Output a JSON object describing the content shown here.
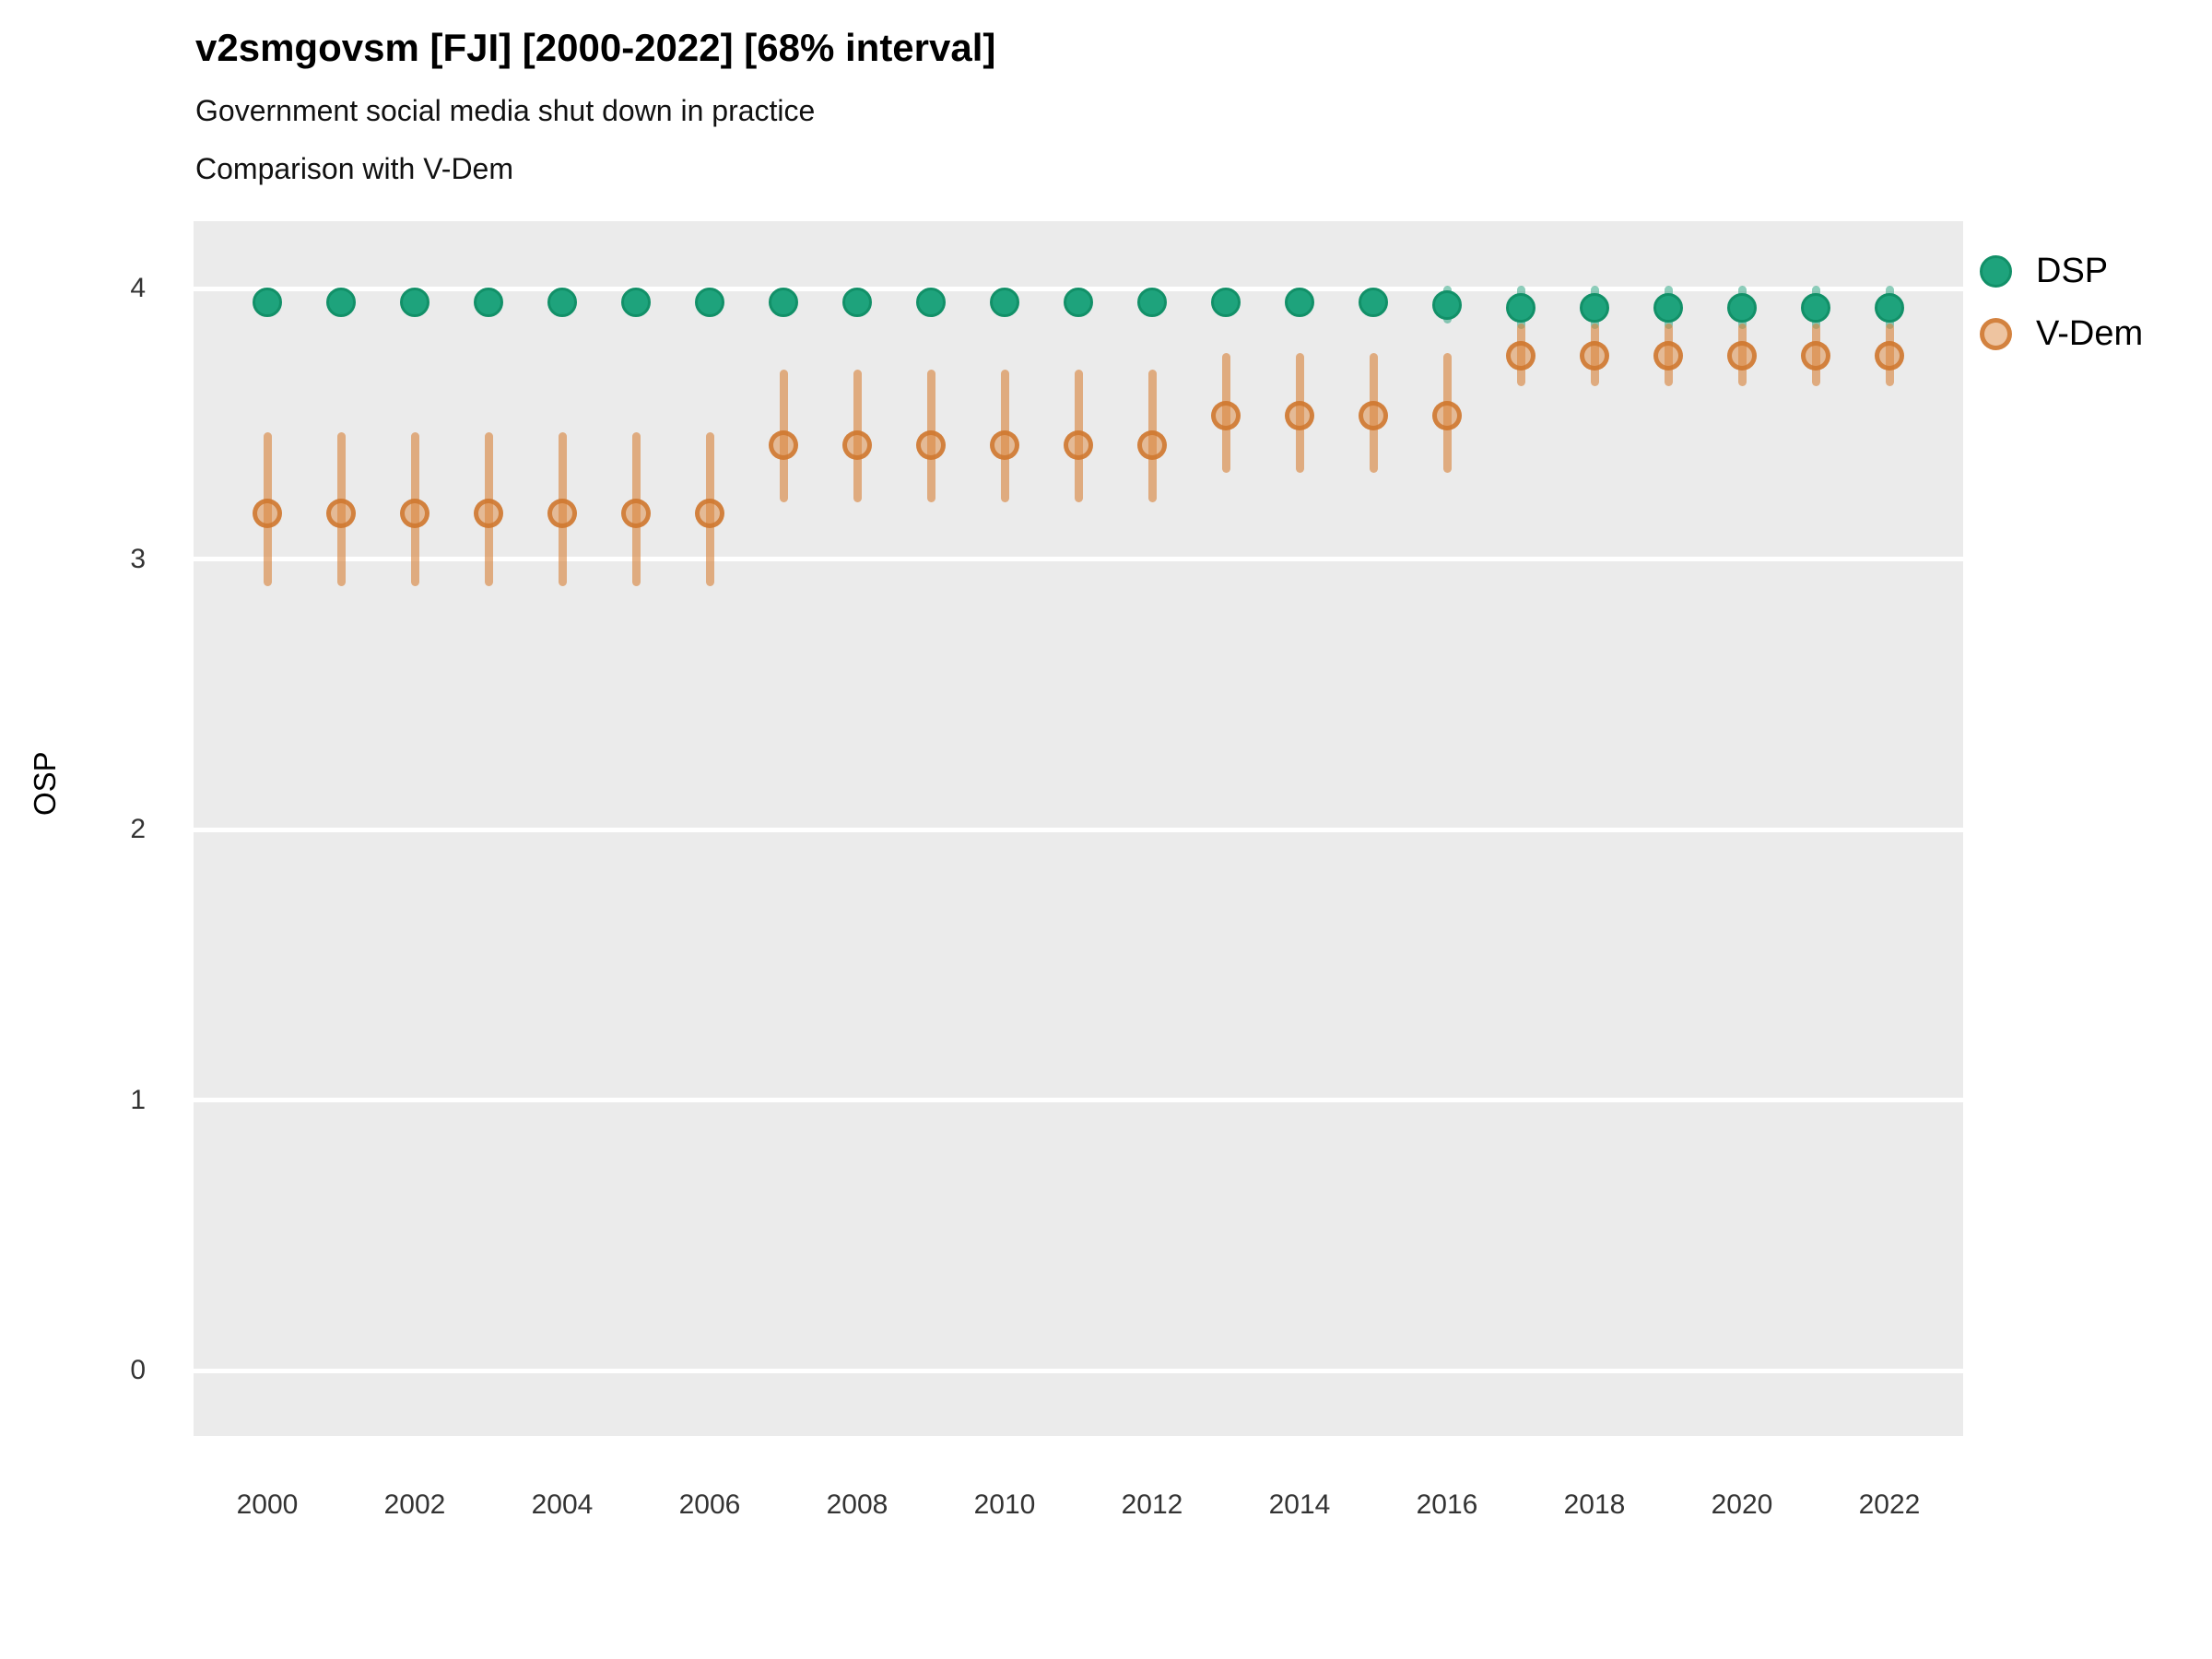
{
  "chart_data": {
    "type": "scatter",
    "title": "v2smgovsm [FJI] [2000-2022] [68% interval]",
    "subtitle": "Government social media shut down in practice",
    "subtitle2": "Comparison with V-Dem",
    "xlabel": "",
    "ylabel": "OSP",
    "xlim": [
      1999,
      2023
    ],
    "ylim": [
      -0.25,
      4.25
    ],
    "y_ticks": [
      4,
      3,
      2,
      1,
      0
    ],
    "x_ticks": [
      2000,
      2002,
      2004,
      2006,
      2008,
      2010,
      2012,
      2014,
      2016,
      2018,
      2020,
      2022
    ],
    "grid": "horizontal-major-only",
    "legend_position": "right",
    "interval_label": "68% interval",
    "series": [
      {
        "name": "DSP",
        "color": "#1ea37c",
        "points": [
          {
            "year": 2000,
            "y": 3.95,
            "lo": 3.91,
            "hi": 3.99
          },
          {
            "year": 2001,
            "y": 3.95,
            "lo": 3.91,
            "hi": 3.99
          },
          {
            "year": 2002,
            "y": 3.95,
            "lo": 3.91,
            "hi": 3.99
          },
          {
            "year": 2003,
            "y": 3.95,
            "lo": 3.91,
            "hi": 3.99
          },
          {
            "year": 2004,
            "y": 3.95,
            "lo": 3.91,
            "hi": 3.99
          },
          {
            "year": 2005,
            "y": 3.95,
            "lo": 3.91,
            "hi": 3.99
          },
          {
            "year": 2006,
            "y": 3.95,
            "lo": 3.91,
            "hi": 3.99
          },
          {
            "year": 2007,
            "y": 3.95,
            "lo": 3.91,
            "hi": 3.99
          },
          {
            "year": 2008,
            "y": 3.95,
            "lo": 3.91,
            "hi": 3.99
          },
          {
            "year": 2009,
            "y": 3.95,
            "lo": 3.91,
            "hi": 3.99
          },
          {
            "year": 2010,
            "y": 3.95,
            "lo": 3.91,
            "hi": 3.99
          },
          {
            "year": 2011,
            "y": 3.95,
            "lo": 3.91,
            "hi": 3.99
          },
          {
            "year": 2012,
            "y": 3.95,
            "lo": 3.91,
            "hi": 3.99
          },
          {
            "year": 2013,
            "y": 3.95,
            "lo": 3.91,
            "hi": 3.99
          },
          {
            "year": 2014,
            "y": 3.95,
            "lo": 3.91,
            "hi": 3.99
          },
          {
            "year": 2015,
            "y": 3.95,
            "lo": 3.91,
            "hi": 3.99
          },
          {
            "year": 2016,
            "y": 3.94,
            "lo": 3.87,
            "hi": 4.01
          },
          {
            "year": 2017,
            "y": 3.93,
            "lo": 3.85,
            "hi": 4.01
          },
          {
            "year": 2018,
            "y": 3.93,
            "lo": 3.85,
            "hi": 4.01
          },
          {
            "year": 2019,
            "y": 3.93,
            "lo": 3.85,
            "hi": 4.01
          },
          {
            "year": 2020,
            "y": 3.93,
            "lo": 3.85,
            "hi": 4.01
          },
          {
            "year": 2021,
            "y": 3.93,
            "lo": 3.85,
            "hi": 4.01
          },
          {
            "year": 2022,
            "y": 3.93,
            "lo": 3.85,
            "hi": 4.01
          }
        ]
      },
      {
        "name": "V-Dem",
        "color": "#de8942",
        "points": [
          {
            "year": 2000,
            "y": 3.17,
            "lo": 2.9,
            "hi": 3.47
          },
          {
            "year": 2001,
            "y": 3.17,
            "lo": 2.9,
            "hi": 3.47
          },
          {
            "year": 2002,
            "y": 3.17,
            "lo": 2.9,
            "hi": 3.47
          },
          {
            "year": 2003,
            "y": 3.17,
            "lo": 2.9,
            "hi": 3.47
          },
          {
            "year": 2004,
            "y": 3.17,
            "lo": 2.9,
            "hi": 3.47
          },
          {
            "year": 2005,
            "y": 3.17,
            "lo": 2.9,
            "hi": 3.47
          },
          {
            "year": 2006,
            "y": 3.17,
            "lo": 2.9,
            "hi": 3.47
          },
          {
            "year": 2007,
            "y": 3.42,
            "lo": 3.21,
            "hi": 3.7
          },
          {
            "year": 2008,
            "y": 3.42,
            "lo": 3.21,
            "hi": 3.7
          },
          {
            "year": 2009,
            "y": 3.42,
            "lo": 3.21,
            "hi": 3.7
          },
          {
            "year": 2010,
            "y": 3.42,
            "lo": 3.21,
            "hi": 3.7
          },
          {
            "year": 2011,
            "y": 3.42,
            "lo": 3.21,
            "hi": 3.7
          },
          {
            "year": 2012,
            "y": 3.42,
            "lo": 3.21,
            "hi": 3.7
          },
          {
            "year": 2013,
            "y": 3.53,
            "lo": 3.32,
            "hi": 3.76
          },
          {
            "year": 2014,
            "y": 3.53,
            "lo": 3.32,
            "hi": 3.76
          },
          {
            "year": 2015,
            "y": 3.53,
            "lo": 3.32,
            "hi": 3.76
          },
          {
            "year": 2016,
            "y": 3.53,
            "lo": 3.32,
            "hi": 3.76
          },
          {
            "year": 2017,
            "y": 3.75,
            "lo": 3.64,
            "hi": 3.87
          },
          {
            "year": 2018,
            "y": 3.75,
            "lo": 3.64,
            "hi": 3.87
          },
          {
            "year": 2019,
            "y": 3.75,
            "lo": 3.64,
            "hi": 3.87
          },
          {
            "year": 2020,
            "y": 3.75,
            "lo": 3.64,
            "hi": 3.87
          },
          {
            "year": 2021,
            "y": 3.75,
            "lo": 3.64,
            "hi": 3.87
          },
          {
            "year": 2022,
            "y": 3.75,
            "lo": 3.64,
            "hi": 3.87
          }
        ]
      }
    ]
  }
}
